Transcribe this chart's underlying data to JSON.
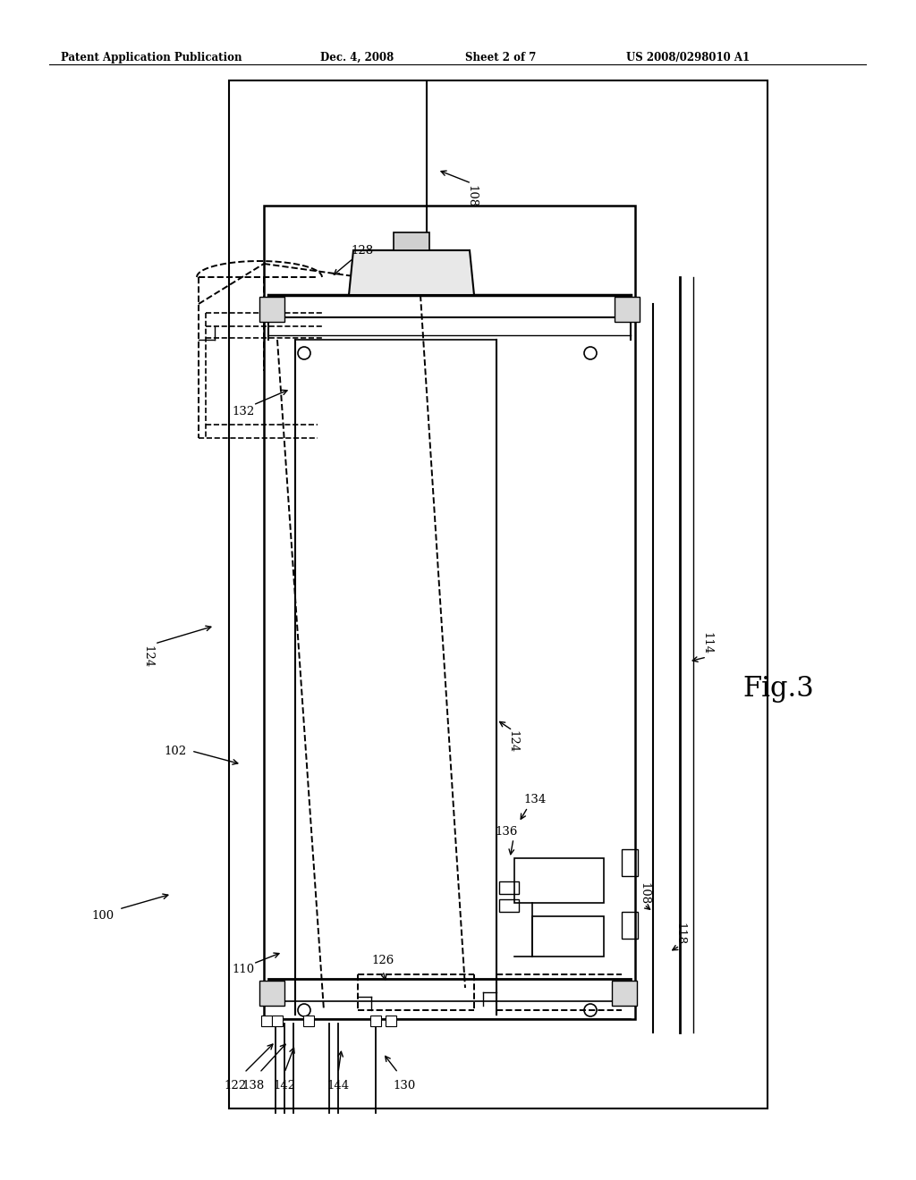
{
  "bg_color": "#ffffff",
  "fig_width": 10.24,
  "fig_height": 13.2,
  "header_text": "Patent Application Publication",
  "header_date": "Dec. 4, 2008",
  "header_sheet": "Sheet 2 of 7",
  "header_patent": "US 2008/0298010 A1",
  "fig_label": "Fig.3"
}
